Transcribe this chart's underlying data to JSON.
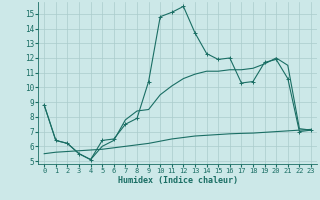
{
  "xlabel": "Humidex (Indice chaleur)",
  "background_color": "#cce8e8",
  "grid_color": "#aacccc",
  "line_color": "#1a6e64",
  "xlim": [
    -0.5,
    23.5
  ],
  "ylim": [
    4.8,
    15.8
  ],
  "yticks": [
    5,
    6,
    7,
    8,
    9,
    10,
    11,
    12,
    13,
    14,
    15
  ],
  "xticks": [
    0,
    1,
    2,
    3,
    4,
    5,
    6,
    7,
    8,
    9,
    10,
    11,
    12,
    13,
    14,
    15,
    16,
    17,
    18,
    19,
    20,
    21,
    22,
    23
  ],
  "line1_x": [
    0,
    1,
    2,
    3,
    4,
    5,
    6,
    7,
    8,
    9,
    10,
    11,
    12,
    13,
    14,
    15,
    16,
    17,
    18,
    19,
    20,
    21,
    22,
    23
  ],
  "line1_y": [
    8.8,
    6.4,
    6.2,
    5.5,
    5.1,
    6.4,
    6.5,
    7.5,
    7.9,
    10.4,
    14.8,
    15.1,
    15.5,
    13.7,
    12.3,
    11.9,
    12.0,
    10.3,
    10.4,
    11.7,
    11.9,
    10.6,
    7.0,
    7.1
  ],
  "line2_x": [
    0,
    1,
    2,
    3,
    4,
    5,
    6,
    7,
    8,
    9,
    10,
    11,
    12,
    13,
    14,
    15,
    16,
    17,
    18,
    19,
    20,
    21,
    22,
    23
  ],
  "line2_y": [
    8.8,
    6.4,
    6.2,
    5.5,
    5.1,
    6.0,
    6.4,
    7.8,
    8.4,
    8.5,
    9.5,
    10.1,
    10.6,
    10.9,
    11.1,
    11.1,
    11.2,
    11.2,
    11.3,
    11.6,
    12.0,
    11.5,
    7.2,
    7.1
  ],
  "line3_x": [
    0,
    1,
    2,
    3,
    4,
    5,
    6,
    7,
    8,
    9,
    10,
    11,
    12,
    13,
    14,
    15,
    16,
    17,
    18,
    19,
    20,
    21,
    22,
    23
  ],
  "line3_y": [
    5.5,
    5.6,
    5.65,
    5.7,
    5.75,
    5.8,
    5.9,
    6.0,
    6.1,
    6.2,
    6.35,
    6.5,
    6.6,
    6.7,
    6.75,
    6.8,
    6.85,
    6.88,
    6.9,
    6.95,
    7.0,
    7.05,
    7.1,
    7.15
  ]
}
